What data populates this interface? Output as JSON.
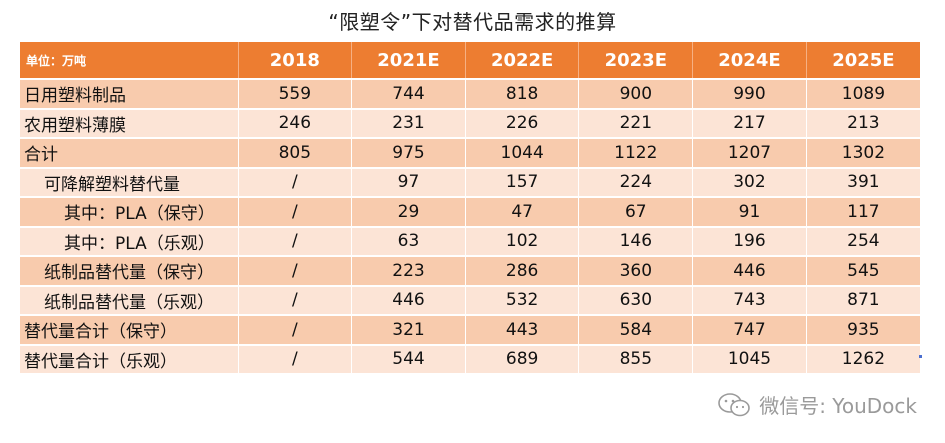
{
  "title": "“限塑令”下对替代品需求的推算",
  "table": {
    "unit_label": "单位：万吨",
    "columns": [
      "2018",
      "2021E",
      "2022E",
      "2023E",
      "2024E",
      "2025E"
    ],
    "rows": [
      {
        "label": "日用塑料制品",
        "values": [
          "559",
          "744",
          "818",
          "900",
          "990",
          "1089"
        ]
      },
      {
        "label": "农用塑料薄膜",
        "values": [
          "246",
          "231",
          "226",
          "221",
          "217",
          "213"
        ]
      },
      {
        "label": "合计",
        "values": [
          "805",
          "975",
          "1044",
          "1122",
          "1207",
          "1302"
        ]
      },
      {
        "label": "可降解塑料替代量",
        "values": [
          "/",
          "97",
          "157",
          "224",
          "302",
          "391"
        ]
      },
      {
        "label": "其中：PLA（保守）",
        "values": [
          "/",
          "29",
          "47",
          "67",
          "91",
          "117"
        ]
      },
      {
        "label": "其中：PLA（乐观）",
        "values": [
          "/",
          "63",
          "102",
          "146",
          "196",
          "254"
        ]
      },
      {
        "label": "纸制品替代量（保守）",
        "values": [
          "/",
          "223",
          "286",
          "360",
          "446",
          "545"
        ]
      },
      {
        "label": "纸制品替代量（乐观）",
        "values": [
          "/",
          "446",
          "532",
          "630",
          "743",
          "871"
        ]
      },
      {
        "label": "替代量合计（保守）",
        "values": [
          "/",
          "321",
          "443",
          "584",
          "747",
          "935"
        ]
      },
      {
        "label": "替代量合计（乐观）",
        "values": [
          "/",
          "544",
          "689",
          "855",
          "1045",
          "1262"
        ]
      }
    ]
  },
  "watermark": {
    "text": "微信号: YouDock",
    "icon": "wechat-icon"
  },
  "colors": {
    "header": "#ED7D31",
    "row_dark": "#F8CBAD",
    "row_light": "#FCE4D6"
  }
}
